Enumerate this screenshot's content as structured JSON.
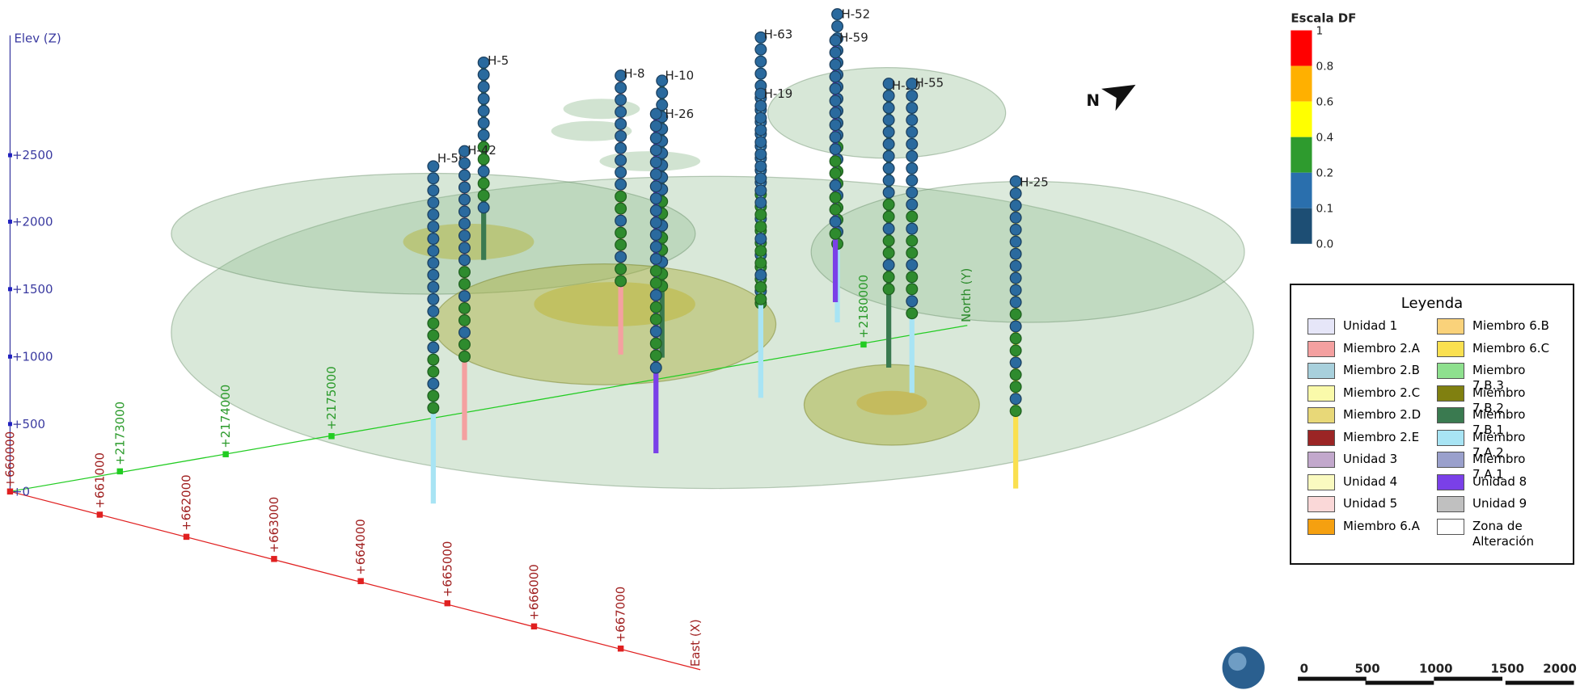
{
  "axes": {
    "elev": {
      "label": "Elev (Z)",
      "ticks": [
        "+2500",
        "+2000",
        "+1500",
        "+1000",
        "+500",
        "+0"
      ]
    },
    "north": {
      "label": "North (Y)",
      "ticks": [
        "+2173000",
        "+2174000",
        "+2175000",
        "+2180000"
      ]
    },
    "east": {
      "label": "East (X)",
      "origin": "+660000",
      "ticks": [
        "+661000",
        "+662000",
        "+663000",
        "+664000",
        "+665000",
        "+666000",
        "+667000"
      ]
    }
  },
  "drillholes": [
    "H-5",
    "H-8",
    "H-10",
    "H-26",
    "H-63",
    "H-19",
    "H-52",
    "H-59",
    "H-20",
    "H-55",
    "H-25",
    "H-56",
    "H-42"
  ],
  "north_arrow": "N",
  "color_scale": {
    "title": "Escala DF",
    "labels": [
      "1",
      "0.8",
      "0.6",
      "0.4",
      "0.2",
      "0.1",
      "0.0"
    ],
    "colors": [
      "#ff0000",
      "#ffb000",
      "#ffff00",
      "#2e9b2e",
      "#2a6fad",
      "#1d4e74"
    ]
  },
  "legend": {
    "title": "Leyenda",
    "items": [
      {
        "name": "Unidad 1",
        "color": "#e6e6f8"
      },
      {
        "name": "Miembro 2.A",
        "color": "#f4a0a0"
      },
      {
        "name": "Miembro 2.B",
        "color": "#a8d0dc"
      },
      {
        "name": "Miembro 2.C",
        "color": "#fafaaa"
      },
      {
        "name": "Miembro 2.D",
        "color": "#e8d878"
      },
      {
        "name": "Miembro 2.E",
        "color": "#9b2525"
      },
      {
        "name": "Unidad 3",
        "color": "#c2a8cc"
      },
      {
        "name": "Unidad 4",
        "color": "#fafac0"
      },
      {
        "name": "Unidad 5",
        "color": "#fad8d8"
      },
      {
        "name": "Miembro 6.A",
        "color": "#f5a010"
      },
      {
        "name": "Miembro 6.B",
        "color": "#fad27a"
      },
      {
        "name": "Miembro 6.C",
        "color": "#fae050"
      },
      {
        "name": "Miembro 7.B.3",
        "color": "#8ee08e"
      },
      {
        "name": "Miembro 7.B.2",
        "color": "#808010"
      },
      {
        "name": "Miembro 7.B.1",
        "color": "#3a7a50"
      },
      {
        "name": "Miembro 7.A.2",
        "color": "#a8e4f4"
      },
      {
        "name": "Miembro 7.A.1",
        "color": "#9aa0cc"
      },
      {
        "name": "Unidad 8",
        "color": "#7a40e8"
      },
      {
        "name": "Unidad 9",
        "color": "#c0c0c0"
      },
      {
        "name": "Zona de Alteración",
        "color": "#ffffff"
      }
    ]
  },
  "scale_bar": [
    "0",
    "500",
    "1000",
    "1500",
    "2000"
  ]
}
